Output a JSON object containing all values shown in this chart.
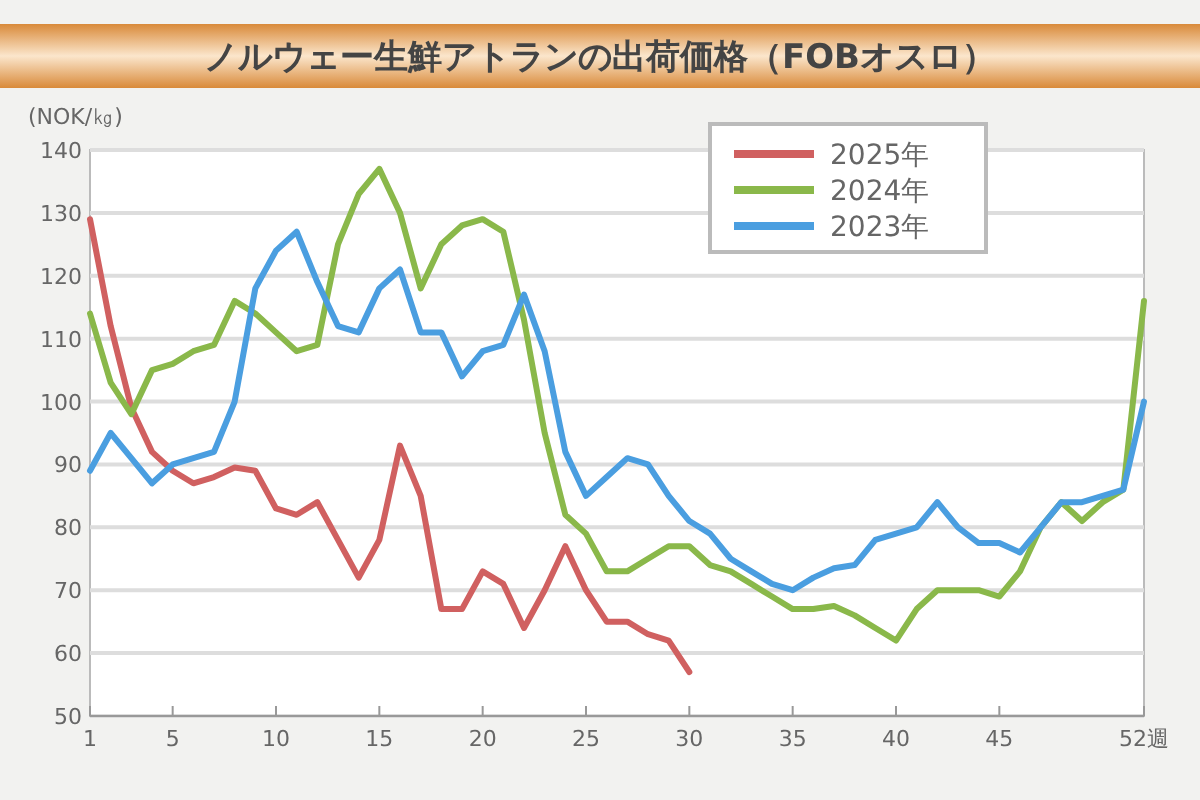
{
  "chart_data": {
    "type": "line",
    "title": "ノルウェー生鮮アトランの出荷価格（FOBオスロ）",
    "ylabel": "(NOK/㎏)",
    "xlim": [
      1,
      52
    ],
    "xticks": [
      1,
      5,
      10,
      15,
      20,
      25,
      30,
      35,
      40,
      45,
      {
        "value": 52,
        "label": "52週"
      }
    ],
    "ylim": [
      50,
      140
    ],
    "yticks": [
      50,
      60,
      70,
      80,
      90,
      100,
      110,
      120,
      130,
      140
    ],
    "grid": "y",
    "legend": "top right",
    "line_style": "solid",
    "x": [
      1,
      2,
      3,
      4,
      5,
      6,
      7,
      8,
      9,
      10,
      11,
      12,
      13,
      14,
      15,
      16,
      17,
      18,
      19,
      20,
      21,
      22,
      23,
      24,
      25,
      26,
      27,
      28,
      29,
      30,
      31,
      32,
      33,
      34,
      35,
      36,
      37,
      38,
      39,
      40,
      41,
      42,
      43,
      44,
      45,
      46,
      47,
      48,
      49,
      50,
      51,
      52
    ],
    "series": [
      {
        "name": "2025年",
        "color": "#d06060",
        "values": [
          129,
          112,
          99,
          92,
          89,
          87,
          88,
          89.5,
          89,
          83,
          82,
          84,
          78,
          72,
          78,
          93,
          85,
          67,
          67,
          73,
          71,
          64,
          70,
          77,
          70,
          65,
          65,
          63,
          62,
          57,
          null,
          null,
          null,
          null,
          null,
          null,
          null,
          null,
          null,
          null,
          null,
          null,
          null,
          null,
          null,
          null,
          null,
          null,
          null,
          null,
          null,
          null
        ]
      },
      {
        "name": "2024年",
        "color": "#8ab84a",
        "values": [
          114,
          103,
          98,
          105,
          106,
          108,
          109,
          116,
          114,
          111,
          108,
          109,
          125,
          133,
          137,
          130,
          118,
          125,
          128,
          129,
          127,
          113,
          95,
          82,
          79,
          73,
          73,
          75,
          77,
          77,
          74,
          73,
          71,
          69,
          67,
          67,
          67.5,
          66,
          64,
          62,
          67,
          70,
          70,
          70,
          69,
          73,
          80,
          84,
          81,
          84,
          86,
          116
        ]
      },
      {
        "name": "2023年",
        "color": "#4a9ee0",
        "values": [
          89,
          95,
          91,
          87,
          90,
          91,
          92,
          100,
          118,
          124,
          127,
          119,
          112,
          111,
          118,
          121,
          111,
          111,
          104,
          108,
          109,
          117,
          108,
          92,
          85,
          88,
          91,
          90,
          85,
          81,
          79,
          75,
          73,
          71,
          70,
          72,
          73.5,
          74,
          78,
          79,
          80,
          84,
          80,
          77.5,
          77.5,
          76,
          80,
          84,
          84,
          85,
          86,
          100
        ]
      }
    ]
  }
}
